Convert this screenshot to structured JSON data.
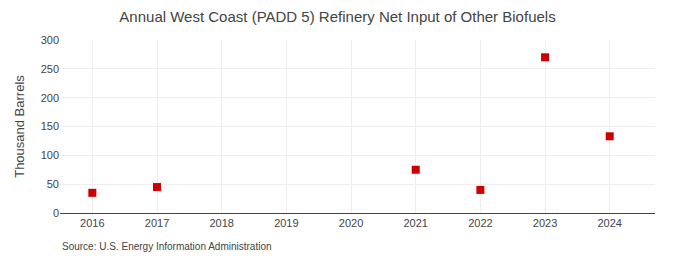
{
  "chart_data": {
    "type": "scatter",
    "title": "Annual West Coast (PADD 5) Refinery Net Input of Other Biofuels",
    "ylabel": "Thousand Barrels",
    "source": "Source: U.S. Energy Information Administration",
    "x": [
      2016,
      2017,
      2021,
      2022,
      2023,
      2024
    ],
    "values": [
      35,
      45,
      75,
      40,
      270,
      133
    ],
    "color": "#cc0000",
    "marker": "square",
    "xlim": [
      2015.5,
      2024.7
    ],
    "xticks": [
      2016,
      2017,
      2018,
      2019,
      2020,
      2021,
      2022,
      2023,
      2024
    ],
    "ylim": [
      0,
      300
    ],
    "yticks": [
      0,
      50,
      100,
      150,
      200,
      250,
      300
    ],
    "grid": true
  }
}
